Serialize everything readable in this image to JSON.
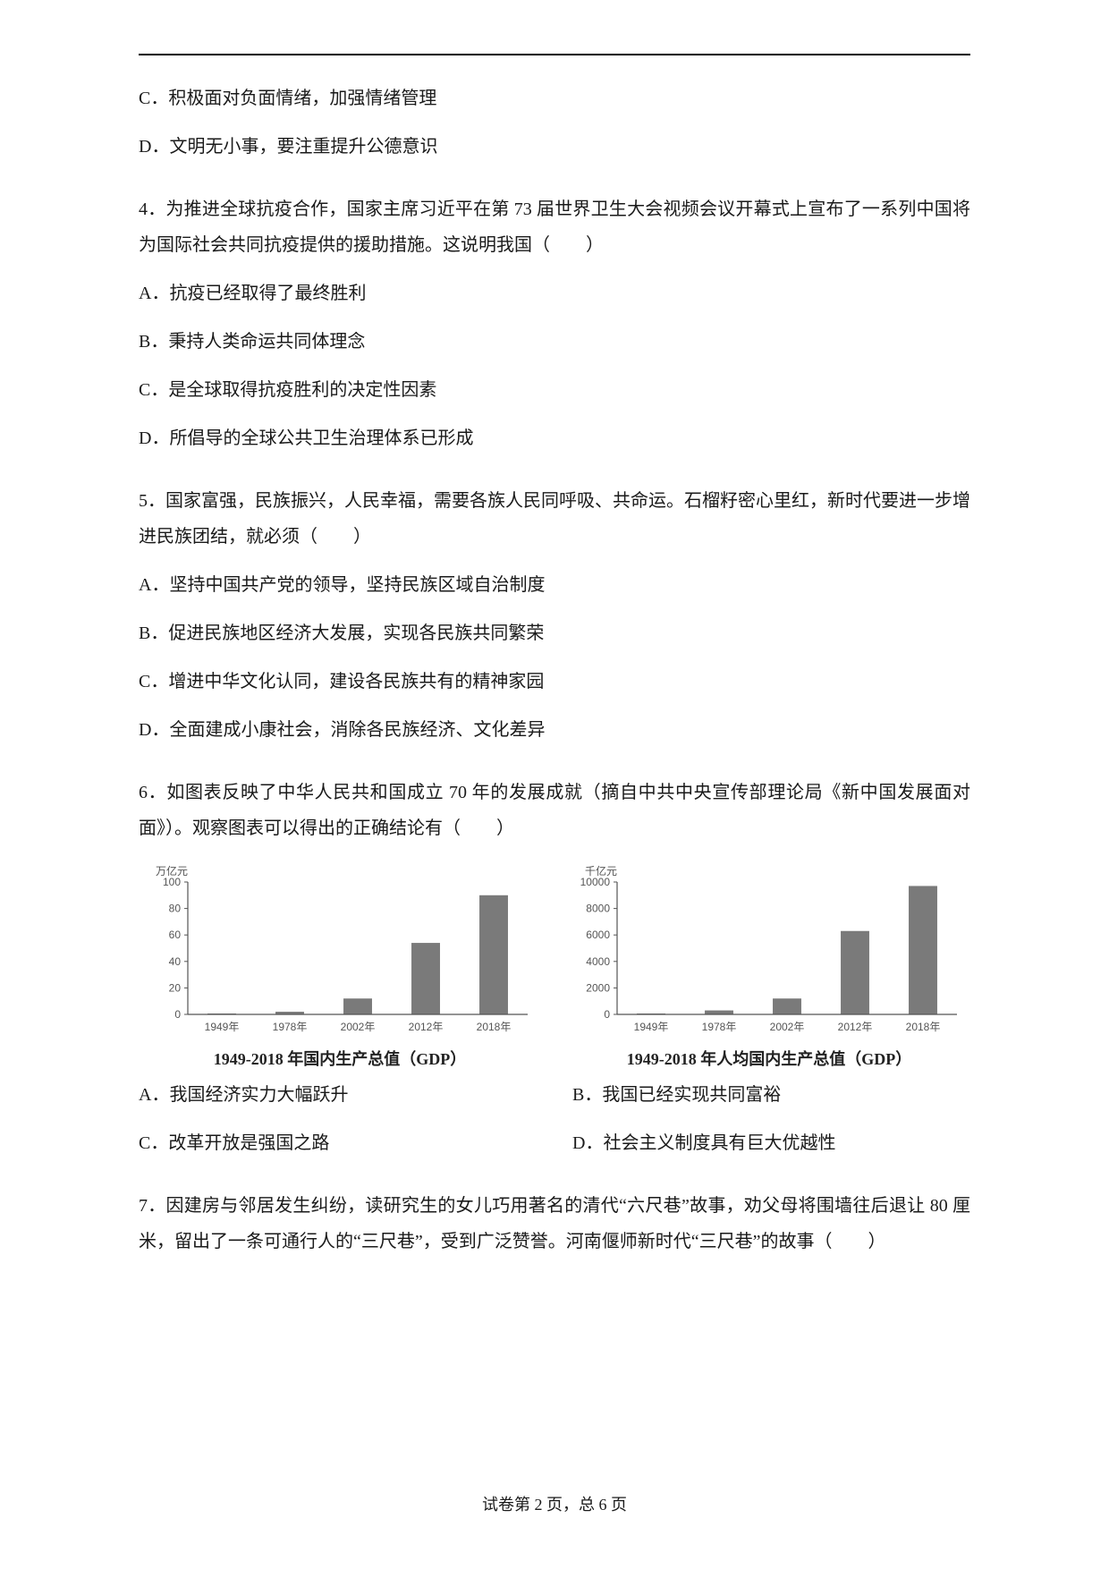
{
  "q3_options": {
    "c": "C．积极面对负面情绪，加强情绪管理",
    "d": "D．文明无小事，要注重提升公德意识"
  },
  "q4": {
    "stem": "4．为推进全球抗疫合作，国家主席习近平在第 73 届世界卫生大会视频会议开幕式上宣布了一系列中国将为国际社会共同抗疫提供的援助措施。这说明我国（　　）",
    "a": "A．抗疫已经取得了最终胜利",
    "b": "B．秉持人类命运共同体理念",
    "c": "C．是全球取得抗疫胜利的决定性因素",
    "d": "D．所倡导的全球公共卫生治理体系已形成"
  },
  "q5": {
    "stem": "5．国家富强，民族振兴，人民幸福，需要各族人民同呼吸、共命运。石榴籽密心里红，新时代要进一步增进民族团结，就必须（　　）",
    "a": "A．坚持中国共产党的领导，坚持民族区域自治制度",
    "b": "B．促进民族地区经济大发展，实现各民族共同繁荣",
    "c": "C．增进中华文化认同，建设各民族共有的精神家园",
    "d": "D．全面建成小康社会，消除各民族经济、文化差异"
  },
  "q6": {
    "stem": "6．如图表反映了中华人民共和国成立 70 年的发展成就（摘自中共中央宣传部理论局《新中国发展面对面》）。观察图表可以得出的正确结论有（　　）",
    "a": "A．我国经济实力大幅跃升",
    "b": "B．我国已经实现共同富裕",
    "c": "C．改革开放是强国之路",
    "d": "D．社会主义制度具有巨大优越性"
  },
  "chart1": {
    "type": "bar",
    "unit_label": "万亿元",
    "categories": [
      "1949年",
      "1978年",
      "2002年",
      "2012年",
      "2018年"
    ],
    "values": [
      0.5,
      2,
      12,
      54,
      90
    ],
    "ymax": 100,
    "yticks": [
      0,
      20,
      40,
      60,
      80,
      100
    ],
    "bar_color": "#7a7a7a",
    "axis_color": "#555555",
    "tick_label_color": "#555555",
    "background_color": "#ffffff",
    "bar_width_ratio": 0.42,
    "caption": "1949-2018 年国内生产总值（GDP）",
    "font_size_ticks": 12,
    "font_size_caption": 18
  },
  "chart2": {
    "type": "bar",
    "unit_label": "千亿元",
    "categories": [
      "1949年",
      "1978年",
      "2002年",
      "2012年",
      "2018年"
    ],
    "values": [
      50,
      300,
      1200,
      6300,
      9700
    ],
    "ymax": 10000,
    "yticks": [
      0,
      2000,
      4000,
      6000,
      8000,
      10000
    ],
    "bar_color": "#7a7a7a",
    "axis_color": "#555555",
    "tick_label_color": "#555555",
    "background_color": "#ffffff",
    "bar_width_ratio": 0.42,
    "caption": "1949-2018 年人均国内生产总值（GDP）",
    "font_size_ticks": 12,
    "font_size_caption": 18
  },
  "q7": {
    "stem": "7．因建房与邻居发生纠纷，读研究生的女儿巧用著名的清代“六尺巷”故事，劝父母将围墙往后退让 80 厘米，留出了一条可通行人的“三尺巷”，受到广泛赞誉。河南偃师新时代“三尺巷”的故事（　　）"
  },
  "footer": "试卷第 2 页，总 6 页"
}
